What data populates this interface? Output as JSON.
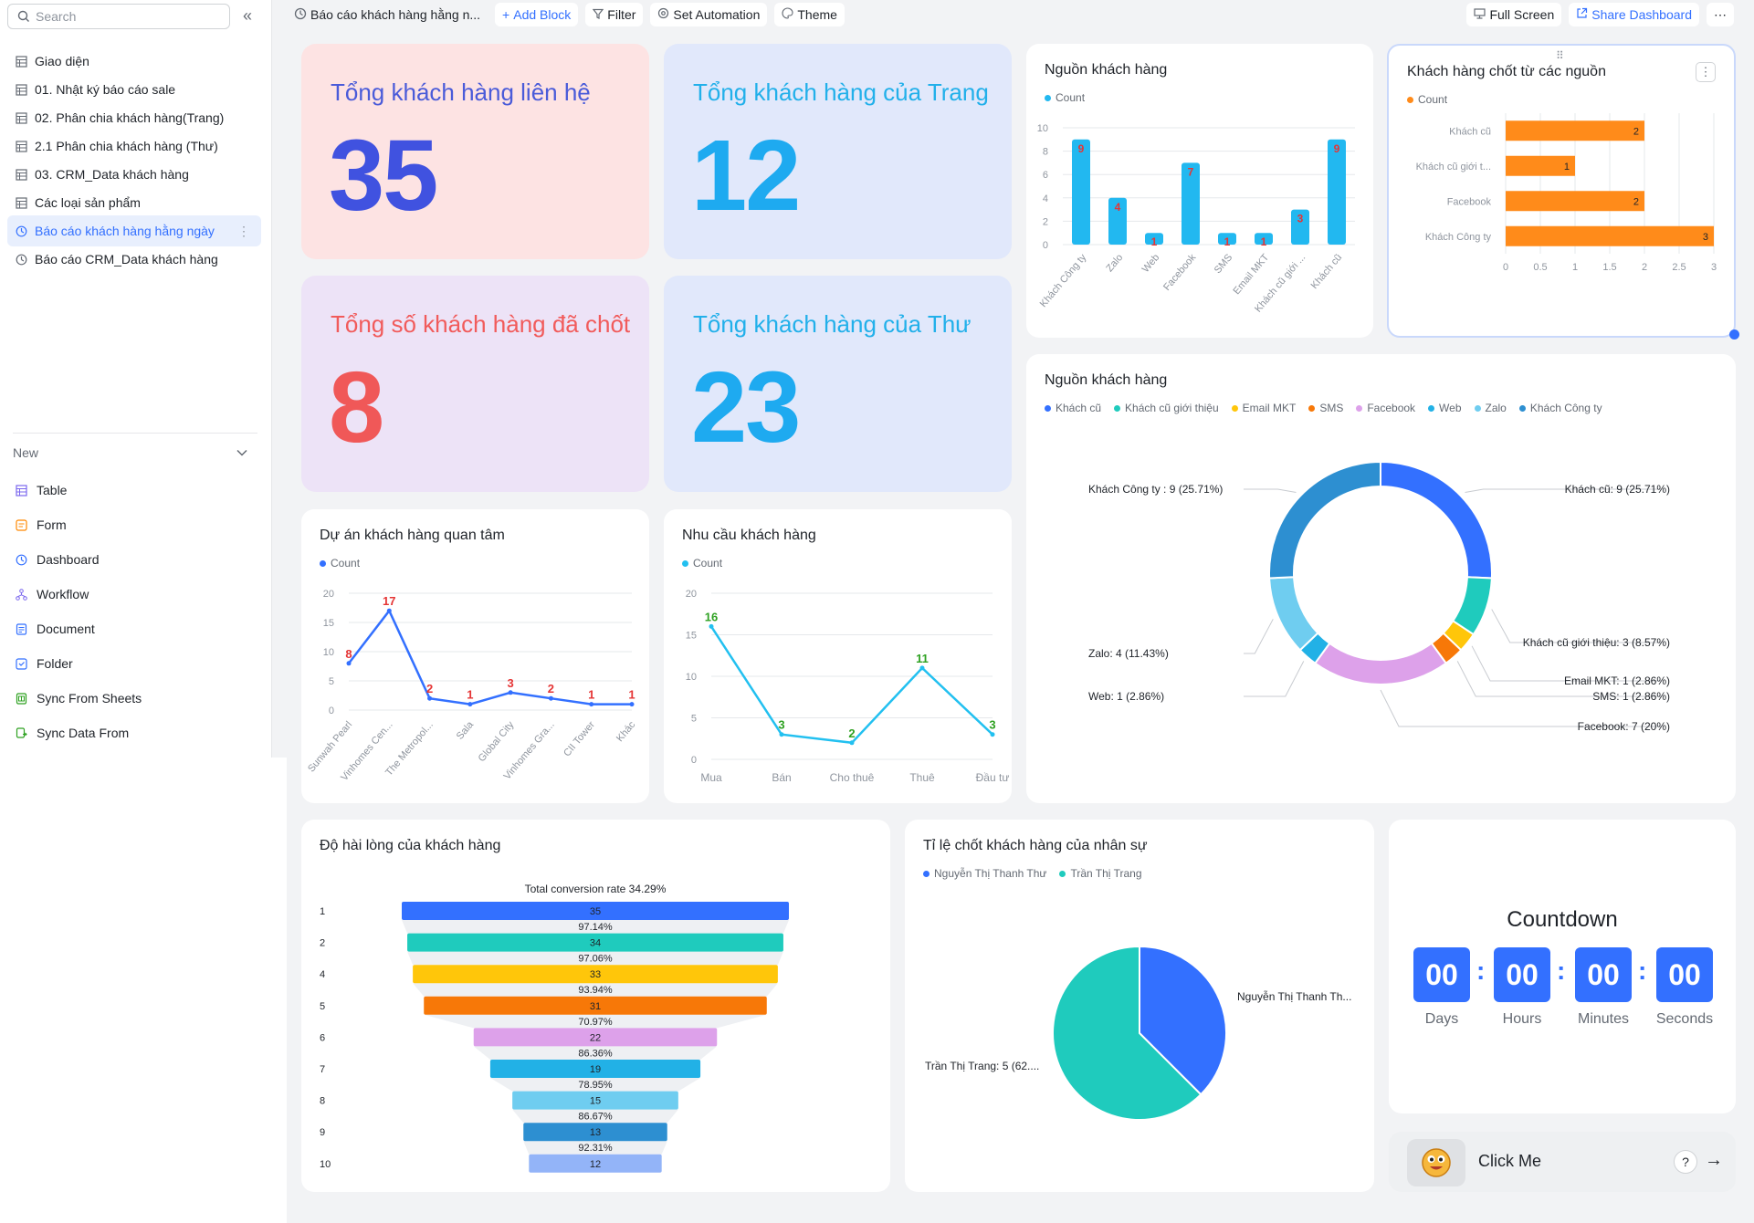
{
  "sidebar": {
    "search_placeholder": "Search",
    "items": [
      {
        "label": "Giao diện",
        "icon": "table-icon"
      },
      {
        "label": "01. Nhật ký báo cáo sale",
        "icon": "table-icon"
      },
      {
        "label": "02. Phân chia khách hàng(Trang)",
        "icon": "table-icon"
      },
      {
        "label": "2.1 Phân chia khách hàng (Thư)",
        "icon": "table-icon"
      },
      {
        "label": "03. CRM_Data khách hàng",
        "icon": "table-icon"
      },
      {
        "label": "Các loại sản phẩm",
        "icon": "table-icon"
      },
      {
        "label": "Báo cáo khách hàng hằng ngày",
        "icon": "dashboard-icon",
        "active": true
      },
      {
        "label": "Báo cáo CRM_Data khách hàng",
        "icon": "dashboard-icon"
      }
    ],
    "new_label": "New",
    "new_items": [
      {
        "label": "Table",
        "icon": "table-icon",
        "color": "#7b67ee"
      },
      {
        "label": "Form",
        "icon": "form-icon",
        "color": "#ff8800"
      },
      {
        "label": "Dashboard",
        "icon": "dashboard-icon",
        "color": "#3370ff"
      },
      {
        "label": "Workflow",
        "icon": "workflow-icon",
        "color": "#7b67ee"
      },
      {
        "label": "Document",
        "icon": "document-icon",
        "color": "#3370ff"
      },
      {
        "label": "Folder",
        "icon": "folder-icon",
        "color": "#3370ff"
      },
      {
        "label": "Sync From Sheets",
        "icon": "sheets-icon",
        "color": "#2ea121"
      },
      {
        "label": "Sync Data From",
        "icon": "sync-icon",
        "color": "#2ea121"
      }
    ]
  },
  "toolbar": {
    "title": "Báo cáo khách hàng hằng n...",
    "add_block": "Add Block",
    "filter": "Filter",
    "automation": "Set Automation",
    "theme": "Theme",
    "full_screen": "Full Screen",
    "share": "Share Dashboard"
  },
  "stats": [
    {
      "label": "Tổng khách hàng liên hệ",
      "value": "35",
      "bg": "#fde3e3",
      "label_color": "#4a5bd9",
      "num_color": "#4052e0"
    },
    {
      "label": "Tổng khách hàng của Trang",
      "value": "12",
      "bg": "#e1e8fb",
      "label_color": "#22b0ea",
      "num_color": "#1eaaf0"
    },
    {
      "label": "Tổng số khách hàng đã chốt",
      "value": "8",
      "bg": "#ede3f7",
      "label_color": "#f15b5b",
      "num_color": "#f05858"
    },
    {
      "label": "Tổng khách hàng của Thư",
      "value": "23",
      "bg": "#e1e8fb",
      "label_color": "#22b0ea",
      "num_color": "#1eaaf0"
    }
  ],
  "charts": {
    "source_bar": {
      "title": "Nguồn khách hàng",
      "legend": "Count"
    },
    "closed_bar": {
      "title": "Khách hàng chốt từ các nguồn",
      "legend": "Count"
    },
    "donut": {
      "title": "Nguồn khách hàng"
    },
    "project_line": {
      "title": "Dự án khách hàng quan tâm",
      "legend": "Count"
    },
    "needs_line": {
      "title": "Nhu cầu khách hàng",
      "legend": "Count"
    },
    "funnel": {
      "title": "Độ hài lòng của khách hàng"
    },
    "pie": {
      "title": "Tỉ lệ chốt khách hàng của nhân sự"
    }
  },
  "chart_data": [
    {
      "type": "bar",
      "title": "Nguồn khách hàng",
      "categories": [
        "Khách Công ty",
        "Zalo",
        "Web",
        "Facebook",
        "SMS",
        "Email MKT",
        "Khách cũ giới ...",
        "Khách cũ"
      ],
      "series": [
        {
          "name": "Count",
          "values": [
            9,
            4,
            1,
            7,
            1,
            1,
            3,
            9
          ]
        }
      ],
      "ylim": [
        0,
        10
      ],
      "yticks": [
        0,
        2,
        4,
        6,
        8,
        10
      ],
      "color": "#22b8f0"
    },
    {
      "type": "bar",
      "orientation": "horizontal",
      "title": "Khách hàng chốt từ các nguồn",
      "categories": [
        "Khách cũ",
        "Khách cũ giới t...",
        "Facebook",
        "Khách Công ty"
      ],
      "series": [
        {
          "name": "Count",
          "values": [
            2,
            1,
            2,
            3
          ]
        }
      ],
      "xlim": [
        0,
        3
      ],
      "xticks": [
        "0",
        "0.5",
        "1",
        "1.5",
        "2",
        "2.5",
        "3"
      ],
      "color": "#ff8b1a"
    },
    {
      "type": "pie",
      "variant": "donut",
      "title": "Nguồn khách hàng",
      "legend": [
        "Khách cũ",
        "Khách cũ giới thiệu",
        "Email MKT",
        "SMS",
        "Facebook",
        "Web",
        "Zalo",
        "Khách Công ty"
      ],
      "slices": [
        {
          "name": "Khách cũ",
          "value": 9,
          "label": "Khách cũ: 9 (25.71%)",
          "color": "#3370ff"
        },
        {
          "name": "Khách cũ giới thiệu",
          "value": 3,
          "label": "Khách cũ giới thiệu: 3 (8.57%)",
          "color": "#1fcbbd"
        },
        {
          "name": "Email MKT",
          "value": 1,
          "label": "Email MKT: 1 (2.86%)",
          "color": "#ffc60a"
        },
        {
          "name": "SMS",
          "value": 1,
          "label": "SMS: 1 (2.86%)",
          "color": "#f77808"
        },
        {
          "name": "Facebook",
          "value": 7,
          "label": "Facebook: 7 (20%)",
          "color": "#dda1ea"
        },
        {
          "name": "Web",
          "value": 1,
          "label": "Web: 1 (2.86%)",
          "color": "#22b1e6"
        },
        {
          "name": "Zalo",
          "value": 4,
          "label": "Zalo: 4 (11.43%)",
          "color": "#6fcdf0"
        },
        {
          "name": "Khách Công ty",
          "value": 9,
          "label": "Khách Công ty : 9 (25.71%)",
          "color": "#2d8fd1"
        }
      ]
    },
    {
      "type": "line",
      "title": "Dự án khách hàng quan tâm",
      "categories": [
        "Sunwah Pearl",
        "Vinhomes Cen...",
        "The Metropol...",
        "Sala",
        "Global City",
        "Vinhomes Gra...",
        "CII Tower",
        "Khác"
      ],
      "series": [
        {
          "name": "Count",
          "values": [
            8,
            17,
            2,
            1,
            3,
            2,
            1,
            1
          ]
        }
      ],
      "ylim": [
        0,
        20
      ],
      "yticks": [
        0,
        5,
        10,
        15,
        20
      ],
      "color": "#3370ff",
      "label_color": "#e53535"
    },
    {
      "type": "line",
      "title": "Nhu cầu khách hàng",
      "categories": [
        "Mua",
        "Bán",
        "Cho thuê",
        "Thuê",
        "Đầu tư"
      ],
      "series": [
        {
          "name": "Count",
          "values": [
            16,
            3,
            2,
            11,
            3
          ]
        }
      ],
      "ylim": [
        0,
        20
      ],
      "yticks": [
        0,
        5,
        10,
        15,
        20
      ],
      "color": "#22c0f0",
      "label_color": "#2ea121"
    },
    {
      "type": "bar",
      "variant": "funnel",
      "title": "Độ hài lòng của khách hàng",
      "header": "Total conversion rate 34.29%",
      "categories": [
        "1",
        "2",
        "4",
        "5",
        "6",
        "7",
        "8",
        "9",
        "10"
      ],
      "values": [
        35,
        34,
        33,
        31,
        22,
        19,
        15,
        13,
        12
      ],
      "rates": [
        "97.14%",
        "97.06%",
        "93.94%",
        "70.97%",
        "86.36%",
        "78.95%",
        "86.67%",
        "92.31%"
      ],
      "colors": [
        "#3370ff",
        "#1fcbbd",
        "#ffc60a",
        "#f77808",
        "#dda1ea",
        "#22b1e6",
        "#6fcdf0",
        "#2d8fd1",
        "#93b4f8"
      ]
    },
    {
      "type": "pie",
      "title": "Tỉ lệ chốt khách hàng của nhân sự",
      "legend": [
        "Nguyễn Thị Thanh Thư",
        "Trần Thị Trang"
      ],
      "slices": [
        {
          "name": "Nguyễn Thị Thanh Thư",
          "value": 3,
          "label": "Nguyễn Thị Thanh Th...",
          "color": "#3370ff"
        },
        {
          "name": "Trần Thị Trang",
          "value": 5,
          "label": "Trần Thị Trang: 5 (62....",
          "color": "#1fcbbd"
        }
      ]
    }
  ],
  "countdown": {
    "title": "Countdown",
    "units": [
      {
        "value": "00",
        "label": "Days"
      },
      {
        "value": "00",
        "label": "Hours"
      },
      {
        "value": "00",
        "label": "Minutes"
      },
      {
        "value": "00",
        "label": "Seconds"
      }
    ]
  },
  "click_card": {
    "label": "Click Me",
    "help": "?",
    "arrow": "→"
  }
}
